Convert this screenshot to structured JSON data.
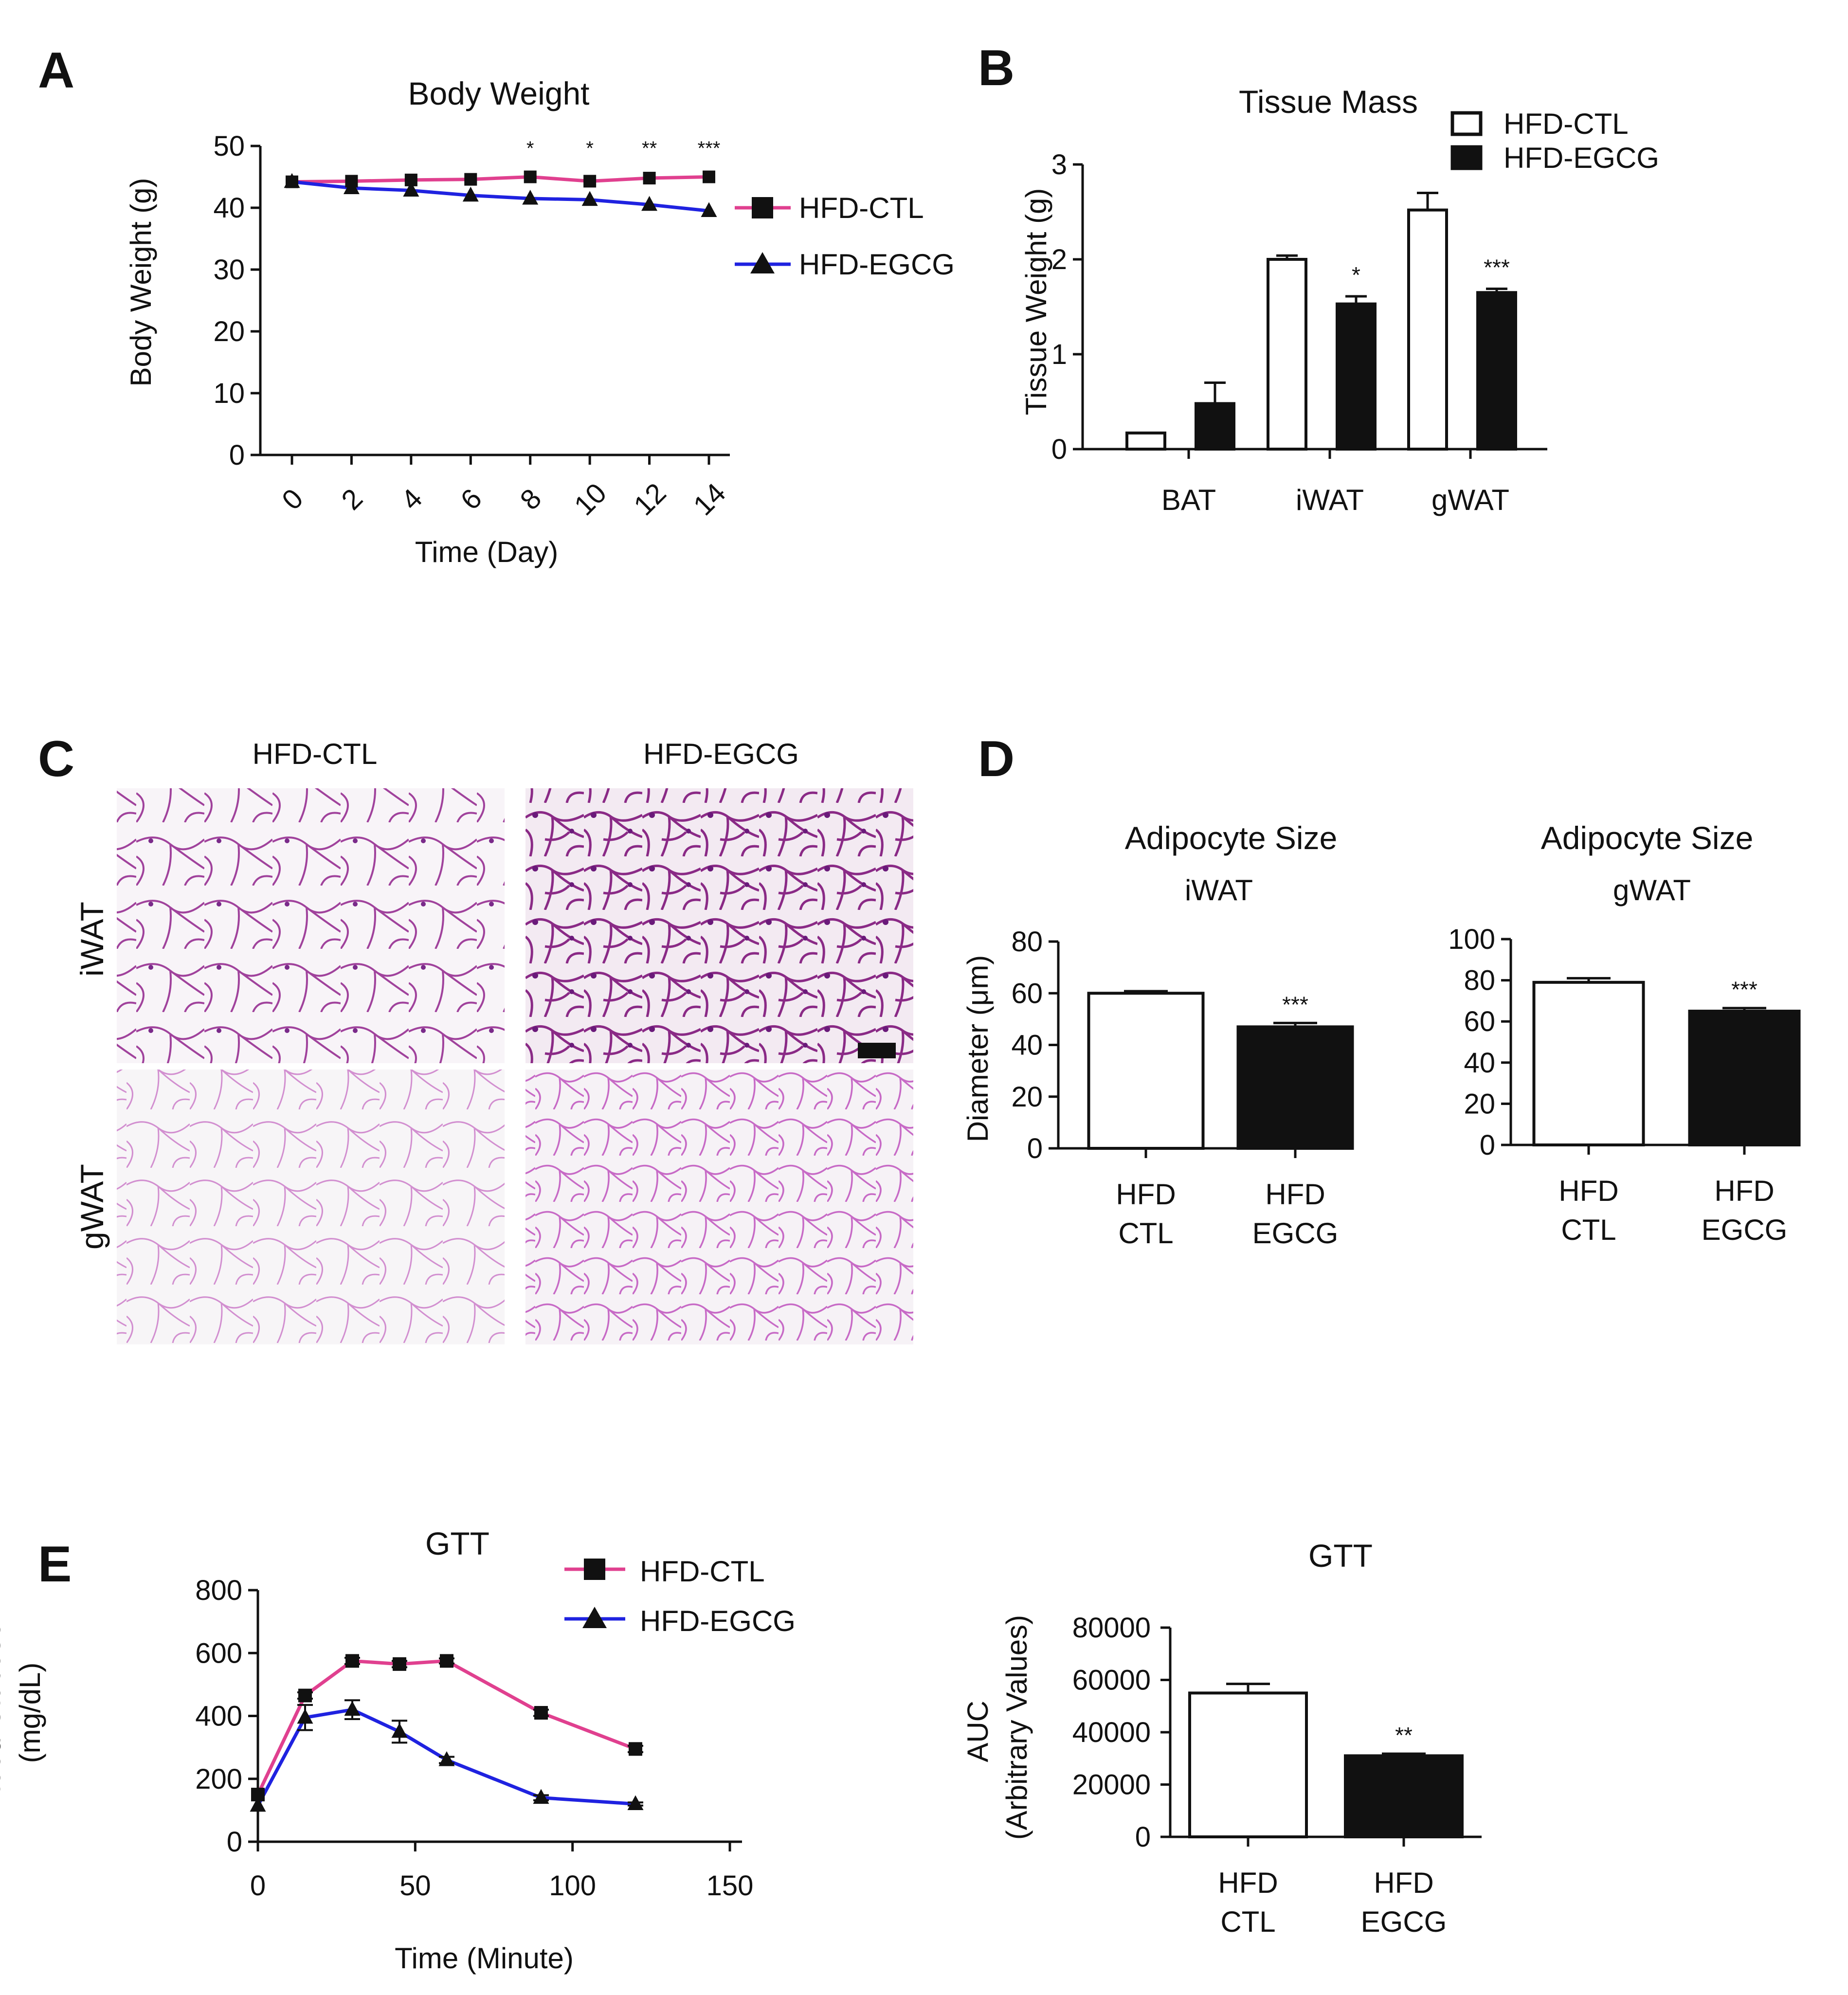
{
  "panels": {
    "A": "A",
    "B": "B",
    "C": "C",
    "D": "D",
    "E": "E"
  },
  "series_names": {
    "ctl": "HFD-CTL",
    "egcg": "HFD-EGCG"
  },
  "colors": {
    "ctl": "#e0408f",
    "egcg": "#1f22e0",
    "axis": "#111111",
    "stain_dark": "#8a2a86",
    "stain_light": "#d9a6d7"
  },
  "chart_data": [
    {
      "id": "A",
      "type": "line",
      "title": "Body Weight",
      "xlabel": "Time (Day)",
      "ylabel": "Body Weight (g)",
      "ylim": [
        0,
        50
      ],
      "xticks": [
        "0",
        "2",
        "4",
        "6",
        "8",
        "10",
        "12",
        "14"
      ],
      "yticks": [
        "0",
        "10",
        "20",
        "30",
        "40",
        "50"
      ],
      "x": [
        0,
        2,
        4,
        6,
        8,
        10,
        12,
        14
      ],
      "series": [
        {
          "name": "HFD-CTL",
          "marker": "square",
          "values": [
            44.2,
            44.3,
            44.5,
            44.6,
            45.0,
            44.3,
            44.8,
            45.0
          ]
        },
        {
          "name": "HFD-EGCG",
          "marker": "triangle",
          "values": [
            44.2,
            43.2,
            42.8,
            42.0,
            41.5,
            41.3,
            40.5,
            39.5
          ]
        }
      ],
      "annotations": [
        {
          "x": 8,
          "text": "*"
        },
        {
          "x": 10,
          "text": "*"
        },
        {
          "x": 12,
          "text": "**"
        },
        {
          "x": 14,
          "text": "***"
        }
      ],
      "legend": "right"
    },
    {
      "id": "B",
      "type": "bar",
      "title": "Tissue Mass",
      "ylabel": "Tissue Weight (g)",
      "ylim": [
        0,
        3
      ],
      "yticks": [
        "0",
        "1",
        "2",
        "3"
      ],
      "categories": [
        "BAT",
        "iWAT",
        "gWAT"
      ],
      "series": [
        {
          "name": "HFD-CTL",
          "values": [
            0.17,
            2.0,
            2.52
          ],
          "errors": [
            0.0,
            0.04,
            0.18
          ]
        },
        {
          "name": "HFD-EGCG",
          "values": [
            0.48,
            1.53,
            1.65
          ],
          "errors": [
            0.22,
            0.08,
            0.04
          ]
        }
      ],
      "annotations": [
        {
          "category": "iWAT",
          "text": "*"
        },
        {
          "category": "gWAT",
          "text": "***"
        }
      ],
      "legend": "top-right"
    },
    {
      "id": "D1",
      "type": "bar",
      "title": "Adipocyte Size",
      "subtitle": "iWAT",
      "ylabel": "Diameter (μm)",
      "ylim": [
        0,
        80
      ],
      "yticks": [
        "0",
        "20",
        "40",
        "60",
        "80"
      ],
      "categories": [
        "HFD\nCTL",
        "HFD\nEGCG"
      ],
      "values": [
        60,
        47
      ],
      "errors": [
        0.8,
        1.5
      ],
      "annotation": "***"
    },
    {
      "id": "D2",
      "type": "bar",
      "title": "Adipocyte Size",
      "subtitle": "gWAT",
      "ylim": [
        0,
        100
      ],
      "yticks": [
        "0",
        "20",
        "40",
        "60",
        "80",
        "100"
      ],
      "categories": [
        "HFD\nCTL",
        "HFD\nEGCG"
      ],
      "values": [
        79,
        65
      ],
      "errors": [
        2,
        1.5
      ],
      "annotation": "***"
    },
    {
      "id": "E1",
      "type": "line",
      "title": "GTT",
      "xlabel": "Time (Minute)",
      "ylabel": "Blood Glucose\n(mg/dL)",
      "xlim": [
        0,
        150
      ],
      "ylim": [
        0,
        800
      ],
      "xticks": [
        "0",
        "50",
        "100",
        "150"
      ],
      "yticks": [
        "0",
        "200",
        "400",
        "600",
        "800"
      ],
      "x": [
        0,
        15,
        30,
        45,
        60,
        90,
        120
      ],
      "series": [
        {
          "name": "HFD-CTL",
          "marker": "square",
          "values": [
            150,
            465,
            575,
            565,
            575,
            410,
            295
          ],
          "errors": [
            0,
            10,
            10,
            10,
            8,
            10,
            10
          ]
        },
        {
          "name": "HFD-EGCG",
          "marker": "triangle",
          "values": [
            115,
            395,
            420,
            350,
            260,
            140,
            120
          ],
          "errors": [
            0,
            40,
            30,
            35,
            10,
            8,
            5
          ]
        }
      ],
      "legend": "top-right"
    },
    {
      "id": "E2",
      "type": "bar",
      "title": "GTT",
      "ylabel": "AUC\n(Arbitrary Values)",
      "ylim": [
        0,
        80000
      ],
      "yticks": [
        "0",
        "20000",
        "40000",
        "60000",
        "80000"
      ],
      "categories": [
        "HFD\nCTL",
        "HFD\nEGCG"
      ],
      "values": [
        55000,
        31000
      ],
      "errors": [
        3500,
        800
      ],
      "annotation": "**"
    }
  ],
  "histology": {
    "col_headers": [
      "HFD-CTL",
      "HFD-EGCG"
    ],
    "row_headers": [
      "iWAT",
      "gWAT"
    ]
  }
}
